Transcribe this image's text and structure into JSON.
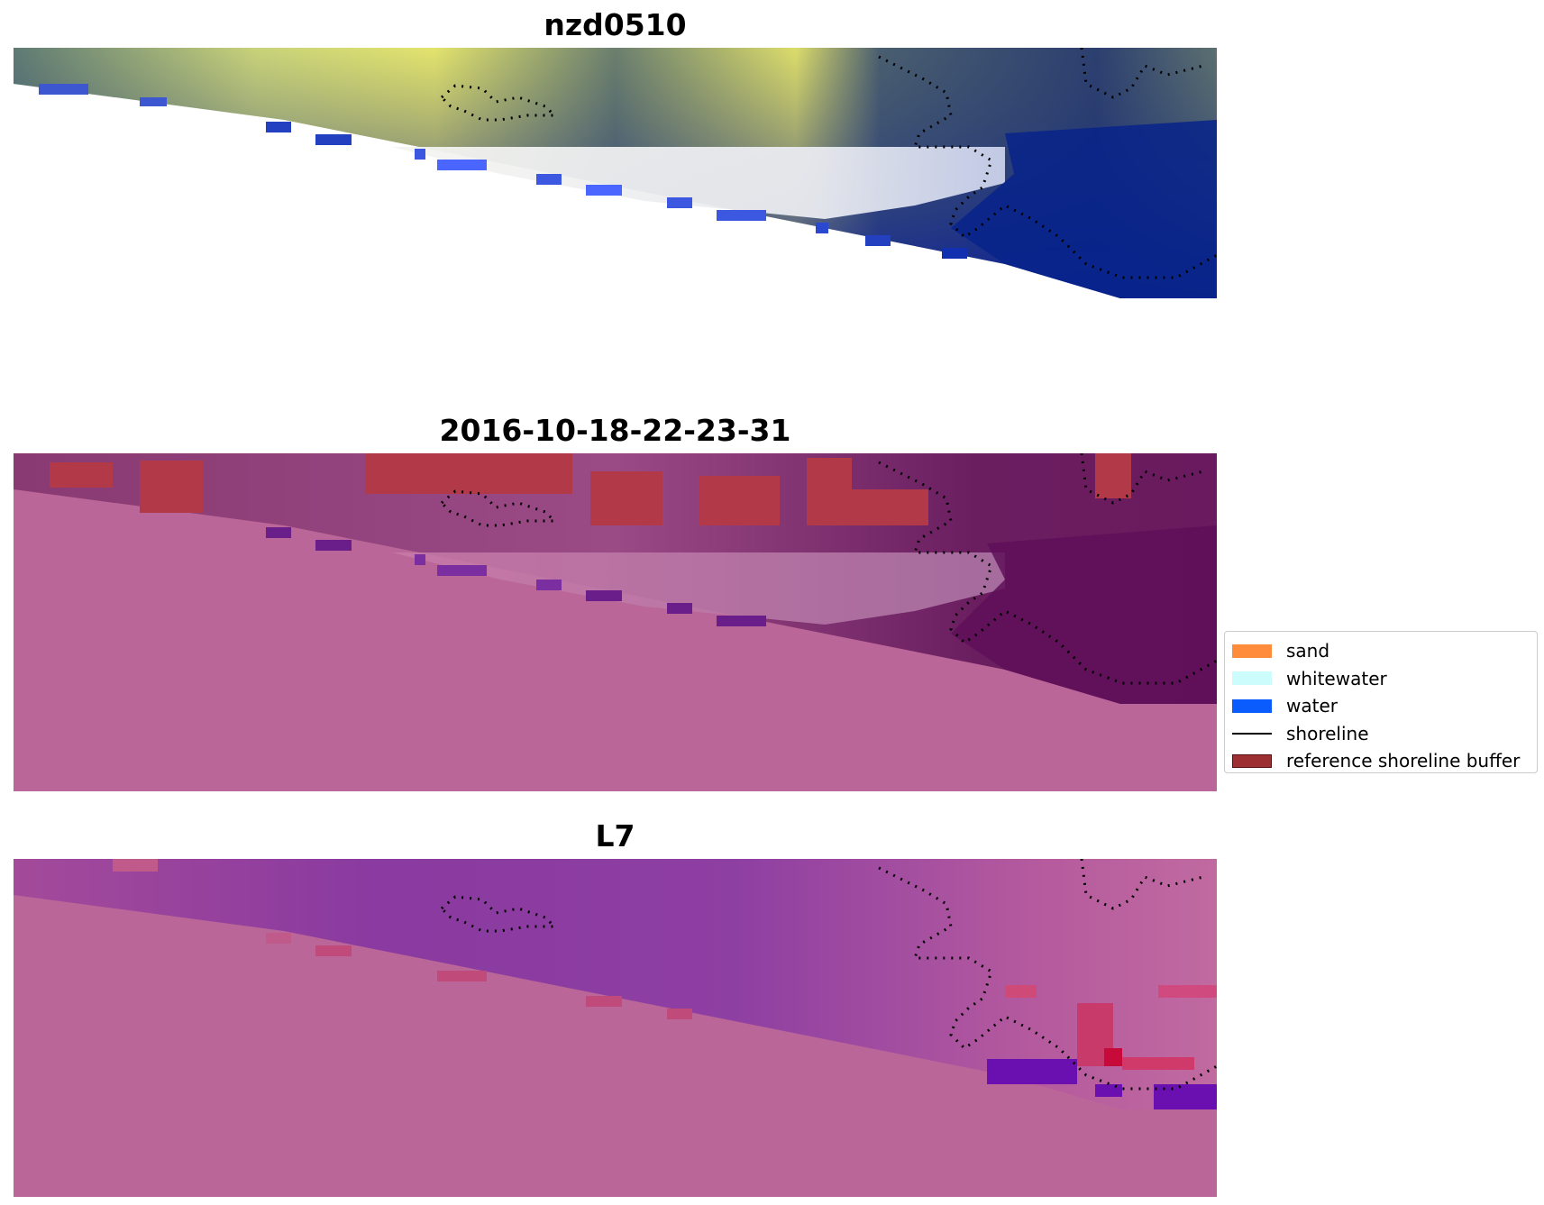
{
  "figure": {
    "panels": [
      {
        "title": "nzd0510",
        "kind": "rgb-image"
      },
      {
        "title": "2016-10-18-22-23-31",
        "kind": "classified-overlay"
      },
      {
        "title": "L7",
        "kind": "index-image"
      }
    ]
  },
  "legend": {
    "items": [
      {
        "label": "sand",
        "type": "patch",
        "color": "#ff8c3a"
      },
      {
        "label": "whitewater",
        "type": "patch",
        "color": "#ccfcfc"
      },
      {
        "label": "water",
        "type": "patch",
        "color": "#0a5cff"
      },
      {
        "label": "shoreline",
        "type": "line",
        "color": "#000000"
      },
      {
        "label": "reference shoreline buffer",
        "type": "patch",
        "color": "#9b2f32"
      }
    ]
  },
  "colors": {
    "nodata_pink": "#bb6698",
    "buffer_red": "#b23a48",
    "deep_water": "#0a1e9c",
    "vegetation_yellow": "#dfe06a",
    "shoreline_dots": "#000000"
  }
}
